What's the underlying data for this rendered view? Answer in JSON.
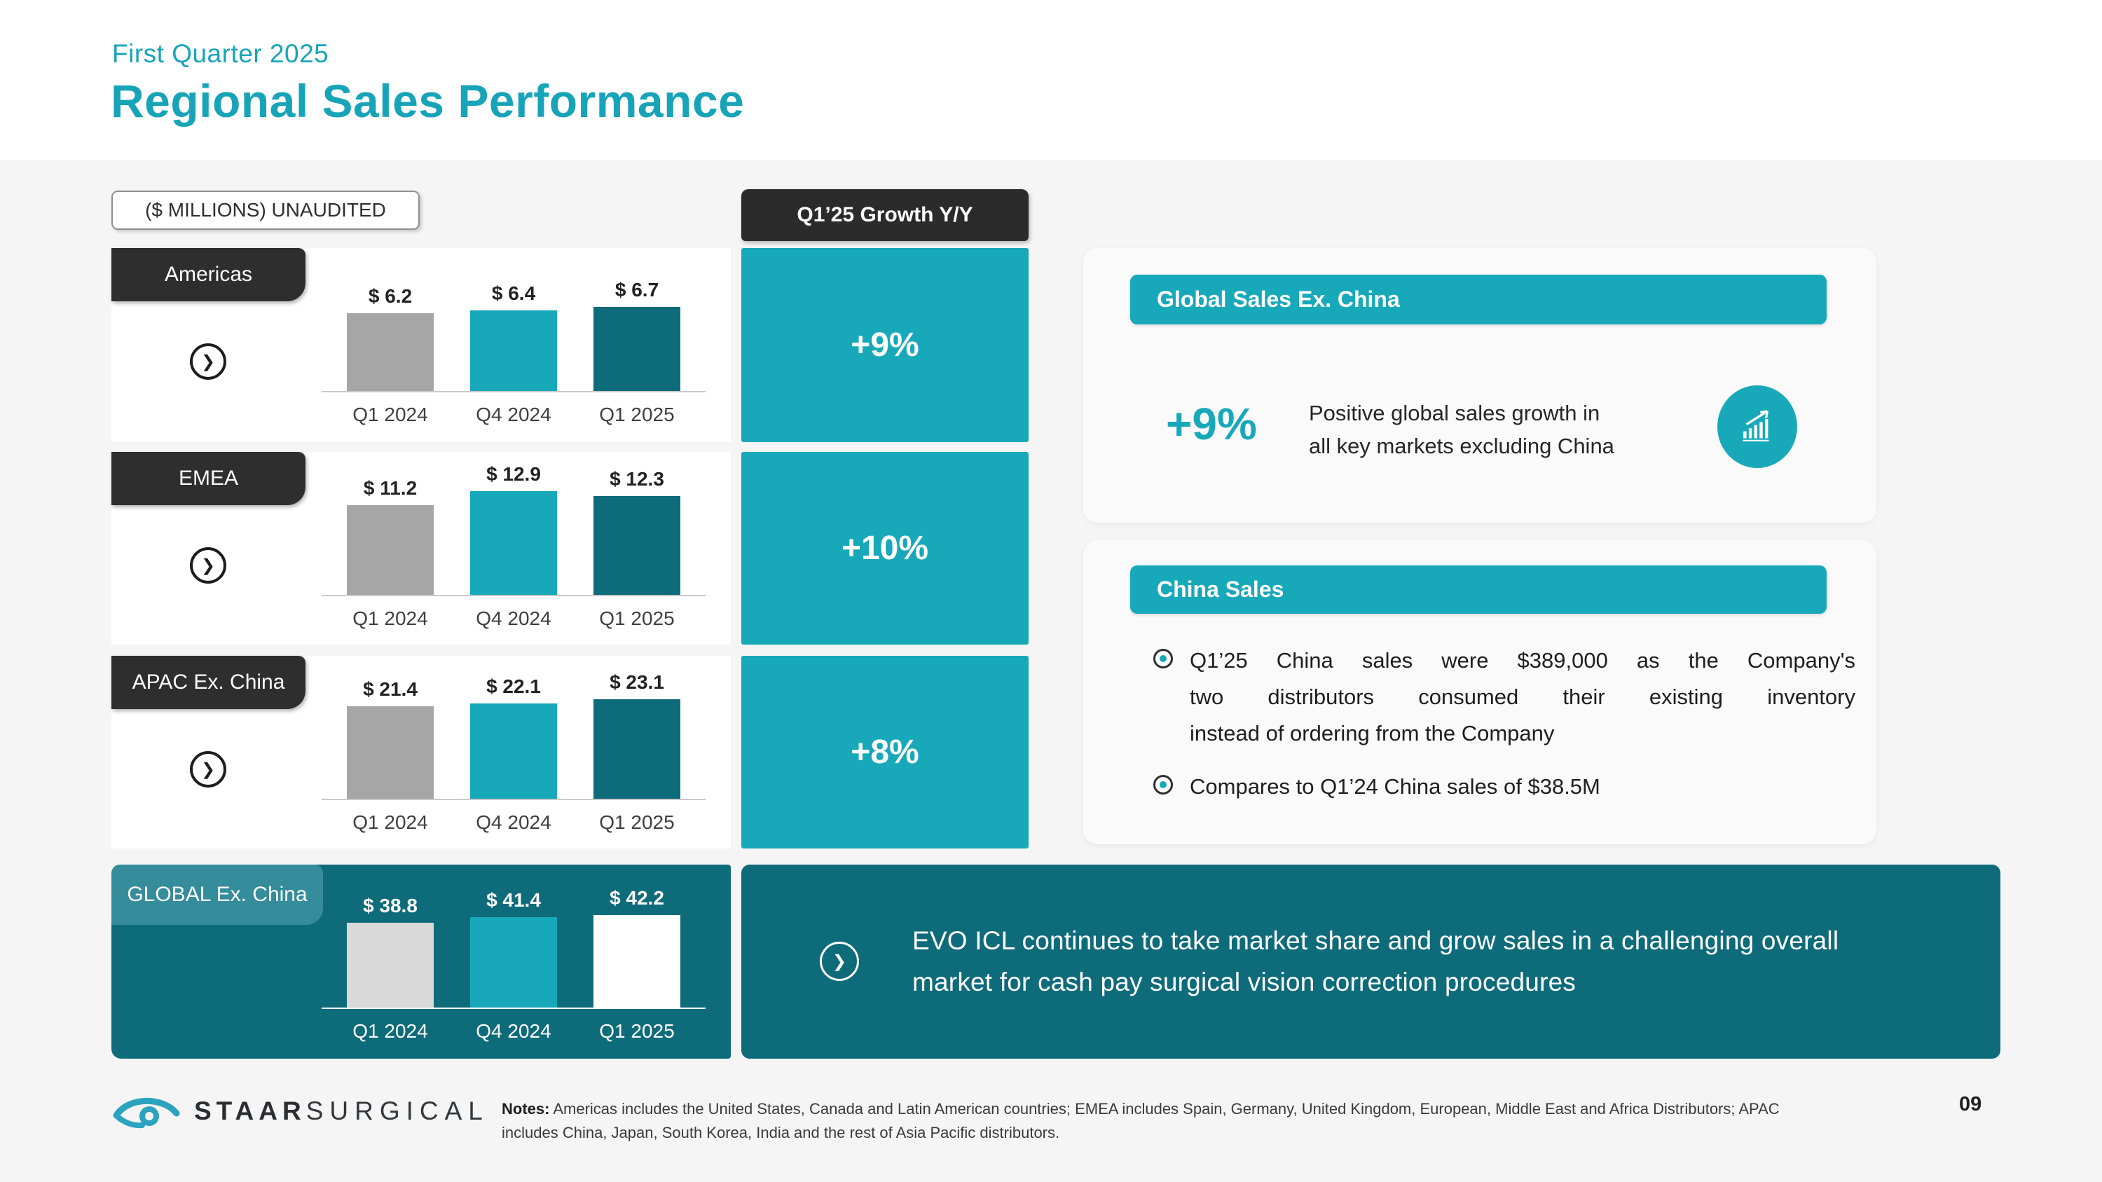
{
  "header": {
    "eyebrow": "First Quarter 2025",
    "title": "Regional Sales Performance"
  },
  "left_chart": {
    "unaudited_label": "($ MILLIONS) UNAUDITED"
  },
  "growth_column": {
    "header": "Q1’25 Growth Y/Y"
  },
  "chart_data": {
    "type": "bar",
    "title": "Regional Sales Performance",
    "subtitle": "($ MILLIONS) UNAUDITED",
    "categories": [
      "Q1 2024",
      "Q4 2024",
      "Q1 2025"
    ],
    "series": [
      {
        "name": "Americas",
        "values": [
          6.2,
          6.4,
          6.7
        ],
        "value_labels": [
          "$ 6.2",
          "$ 6.4",
          "$ 6.7"
        ],
        "growth_yoy": "+9%"
      },
      {
        "name": "EMEA",
        "values": [
          11.2,
          12.9,
          12.3
        ],
        "value_labels": [
          "$ 11.2",
          "$ 12.9",
          "$ 12.3"
        ],
        "growth_yoy": "+10%"
      },
      {
        "name": "APAC Ex. China",
        "values": [
          21.4,
          22.1,
          23.1
        ],
        "value_labels": [
          "$ 21.4",
          "$ 22.1",
          "$ 23.1"
        ],
        "growth_yoy": "+8%"
      },
      {
        "name": "GLOBAL Ex. China",
        "values": [
          38.8,
          41.4,
          42.2
        ],
        "value_labels": [
          "$ 38.8",
          "$ 41.4",
          "$ 42.2"
        ],
        "growth_yoy": null
      }
    ],
    "bar_colors": [
      "#A6A6A6",
      "#17A9BA",
      "#0E6B7A"
    ],
    "global_row_bar_colors": [
      "#D9D9D9",
      "#17A9BA",
      "#FFFFFF"
    ],
    "unit": "$ millions",
    "legend_position": "none",
    "grid": false
  },
  "panels": {
    "global_sales": {
      "header": "Global Sales Ex. China",
      "stat": "+9%",
      "desc_lines": [
        "Positive global sales growth in",
        "all key markets excluding China"
      ],
      "icon": "bar-chart-growth-icon"
    },
    "china_sales": {
      "header": "China Sales",
      "bullet1_lines": [
        "Q1’25 China sales were $389,000 as the Company's",
        "two distributors consumed their existing inventory",
        "instead of ordering from the Company"
      ],
      "bullet2": "Compares to Q1’24 China sales of $38.5M"
    }
  },
  "evo_banner": {
    "lines": [
      "EVO ICL continues to take market share and grow sales in a challenging overall",
      "market for cash pay surgical vision correction procedures"
    ]
  },
  "footer": {
    "logo_staar": "STAAR",
    "logo_surgical": "SURGICAL",
    "notes_label": "Notes:",
    "notes_text": " Americas includes the United States, Canada and Latin American countries; EMEA includes Spain, Germany, United Kingdom, European, Middle East and Africa Distributors; APAC includes China, Japan, South Korea, India and the rest of Asia Pacific distributors.",
    "page_number": "09"
  },
  "colors": {
    "accent_teal": "#17A9BA",
    "dark_teal": "#0E6B7A",
    "label_dark": "#2E2E2E",
    "page_bg": "#F4F5F4"
  }
}
